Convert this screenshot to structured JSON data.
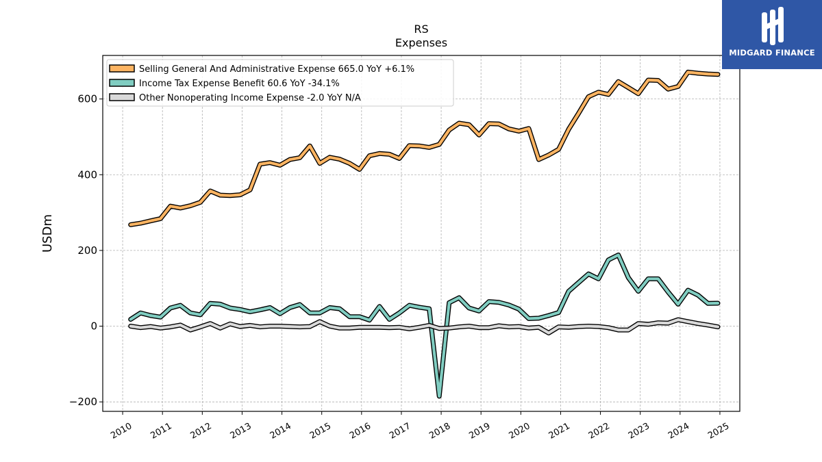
{
  "logo": {
    "text": "MIDGARD FINANCE",
    "bg_color": "#2f57a6"
  },
  "chart_data": {
    "type": "line",
    "title": "RS",
    "subtitle": "Expenses",
    "ylabel": "USDm",
    "xlabel": "",
    "xlim": [
      2009.5,
      2025.5
    ],
    "ylim": [
      -225,
      715
    ],
    "yticks": [
      -200,
      0,
      200,
      400,
      600
    ],
    "ytick_labels": [
      "−200",
      "0",
      "200",
      "400",
      "600"
    ],
    "xticks": [
      2010,
      2011,
      2012,
      2013,
      2014,
      2015,
      2016,
      2017,
      2018,
      2019,
      2020,
      2021,
      2022,
      2023,
      2024,
      2025
    ],
    "xtick_labels": [
      "2010",
      "2011",
      "2012",
      "2013",
      "2014",
      "2015",
      "2016",
      "2017",
      "2018",
      "2019",
      "2020",
      "2021",
      "2022",
      "2023",
      "2024",
      "2025"
    ],
    "grid": true,
    "legend_position": "top-left",
    "x": [
      2010.2,
      2010.45,
      2010.7,
      2010.95,
      2011.2,
      2011.45,
      2011.7,
      2011.95,
      2012.2,
      2012.45,
      2012.7,
      2012.95,
      2013.2,
      2013.45,
      2013.7,
      2013.95,
      2014.2,
      2014.45,
      2014.7,
      2014.95,
      2015.2,
      2015.45,
      2015.7,
      2015.95,
      2016.2,
      2016.45,
      2016.7,
      2016.95,
      2017.2,
      2017.45,
      2017.7,
      2017.95,
      2018.2,
      2018.45,
      2018.7,
      2018.95,
      2019.2,
      2019.45,
      2019.7,
      2019.95,
      2020.2,
      2020.45,
      2020.7,
      2020.95,
      2021.2,
      2021.45,
      2021.7,
      2021.95,
      2022.2,
      2022.45,
      2022.7,
      2022.95,
      2023.2,
      2023.45,
      2023.7,
      2023.95,
      2024.2,
      2024.45,
      2024.7,
      2024.95
    ],
    "series": [
      {
        "name": "Selling General And Administrative Expense  665.0 YoY +6.1%",
        "color": "#fdb462",
        "values": [
          268,
          272,
          278,
          284,
          317,
          312,
          318,
          327,
          357,
          346,
          345,
          347,
          360,
          428,
          432,
          425,
          440,
          445,
          476,
          430,
          446,
          441,
          430,
          414,
          450,
          456,
          454,
          443,
          477,
          476,
          472,
          480,
          518,
          536,
          532,
          505,
          535,
          534,
          521,
          515,
          522,
          440,
          452,
          467,
          520,
          562,
          606,
          618,
          612,
          646,
          630,
          614,
          650,
          649,
          626,
          633,
          671,
          668,
          666,
          665
        ]
      },
      {
        "name": "Income Tax Expense Benefit  60.6 YoY -34.1%",
        "color": "#80cdc1",
        "values": [
          18,
          35,
          28,
          24,
          48,
          55,
          35,
          30,
          60,
          58,
          48,
          44,
          38,
          43,
          49,
          33,
          49,
          57,
          35,
          35,
          49,
          46,
          25,
          25,
          16,
          52,
          18,
          35,
          55,
          50,
          46,
          -185,
          62,
          75,
          48,
          40,
          65,
          63,
          56,
          45,
          20,
          21,
          28,
          36,
          92,
          115,
          138,
          125,
          175,
          188,
          128,
          92,
          125,
          125,
          90,
          58,
          95,
          82,
          60,
          60.6
        ]
      },
      {
        "name": "Other Nonoperating Income Expense  -2.0 YoY N/A",
        "color": "#d9d9d9",
        "values": [
          0,
          -4,
          -1,
          -5,
          -2,
          3,
          -10,
          -2,
          7,
          -5,
          6,
          -1,
          2,
          -2,
          0,
          0,
          -1,
          -2,
          -1,
          12,
          0,
          -5,
          -5,
          -3,
          -3,
          -3,
          -4,
          -3,
          -7,
          -3,
          2,
          -6,
          -5,
          -2,
          0,
          -4,
          -4,
          1,
          -2,
          -1,
          -5,
          -3,
          -18,
          -2,
          -3,
          -1,
          0,
          -1,
          -4,
          -10,
          -10,
          7,
          5,
          9,
          8,
          17,
          12,
          7,
          3,
          -2
        ]
      }
    ]
  }
}
